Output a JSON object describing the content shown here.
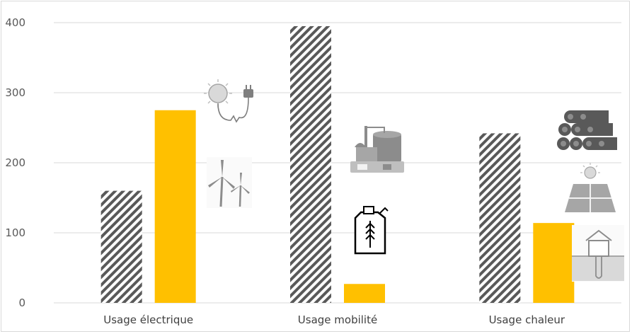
{
  "chart_data": {
    "type": "bar",
    "categories": [
      "Usage électrique",
      "Usage mobilité",
      "Usage chaleur"
    ],
    "series": [
      {
        "pattern": "hatched",
        "color": "#595959",
        "values": [
          160,
          395,
          242
        ]
      },
      {
        "pattern": "solid",
        "color": "#FFC000",
        "values": [
          275,
          27,
          114
        ]
      }
    ],
    "yticks": [
      0,
      100,
      200,
      300,
      400
    ],
    "ylim": [
      0,
      400
    ],
    "grid": true,
    "legend": "none"
  },
  "icons": {
    "electric": [
      "solar-plug-icon",
      "wind-turbines-icon"
    ],
    "mobility": [
      "biogas-plant-icon",
      "fuel-can-icon"
    ],
    "heat": [
      "firewood-logs-icon",
      "solar-panel-icon",
      "geothermal-house-icon"
    ]
  }
}
